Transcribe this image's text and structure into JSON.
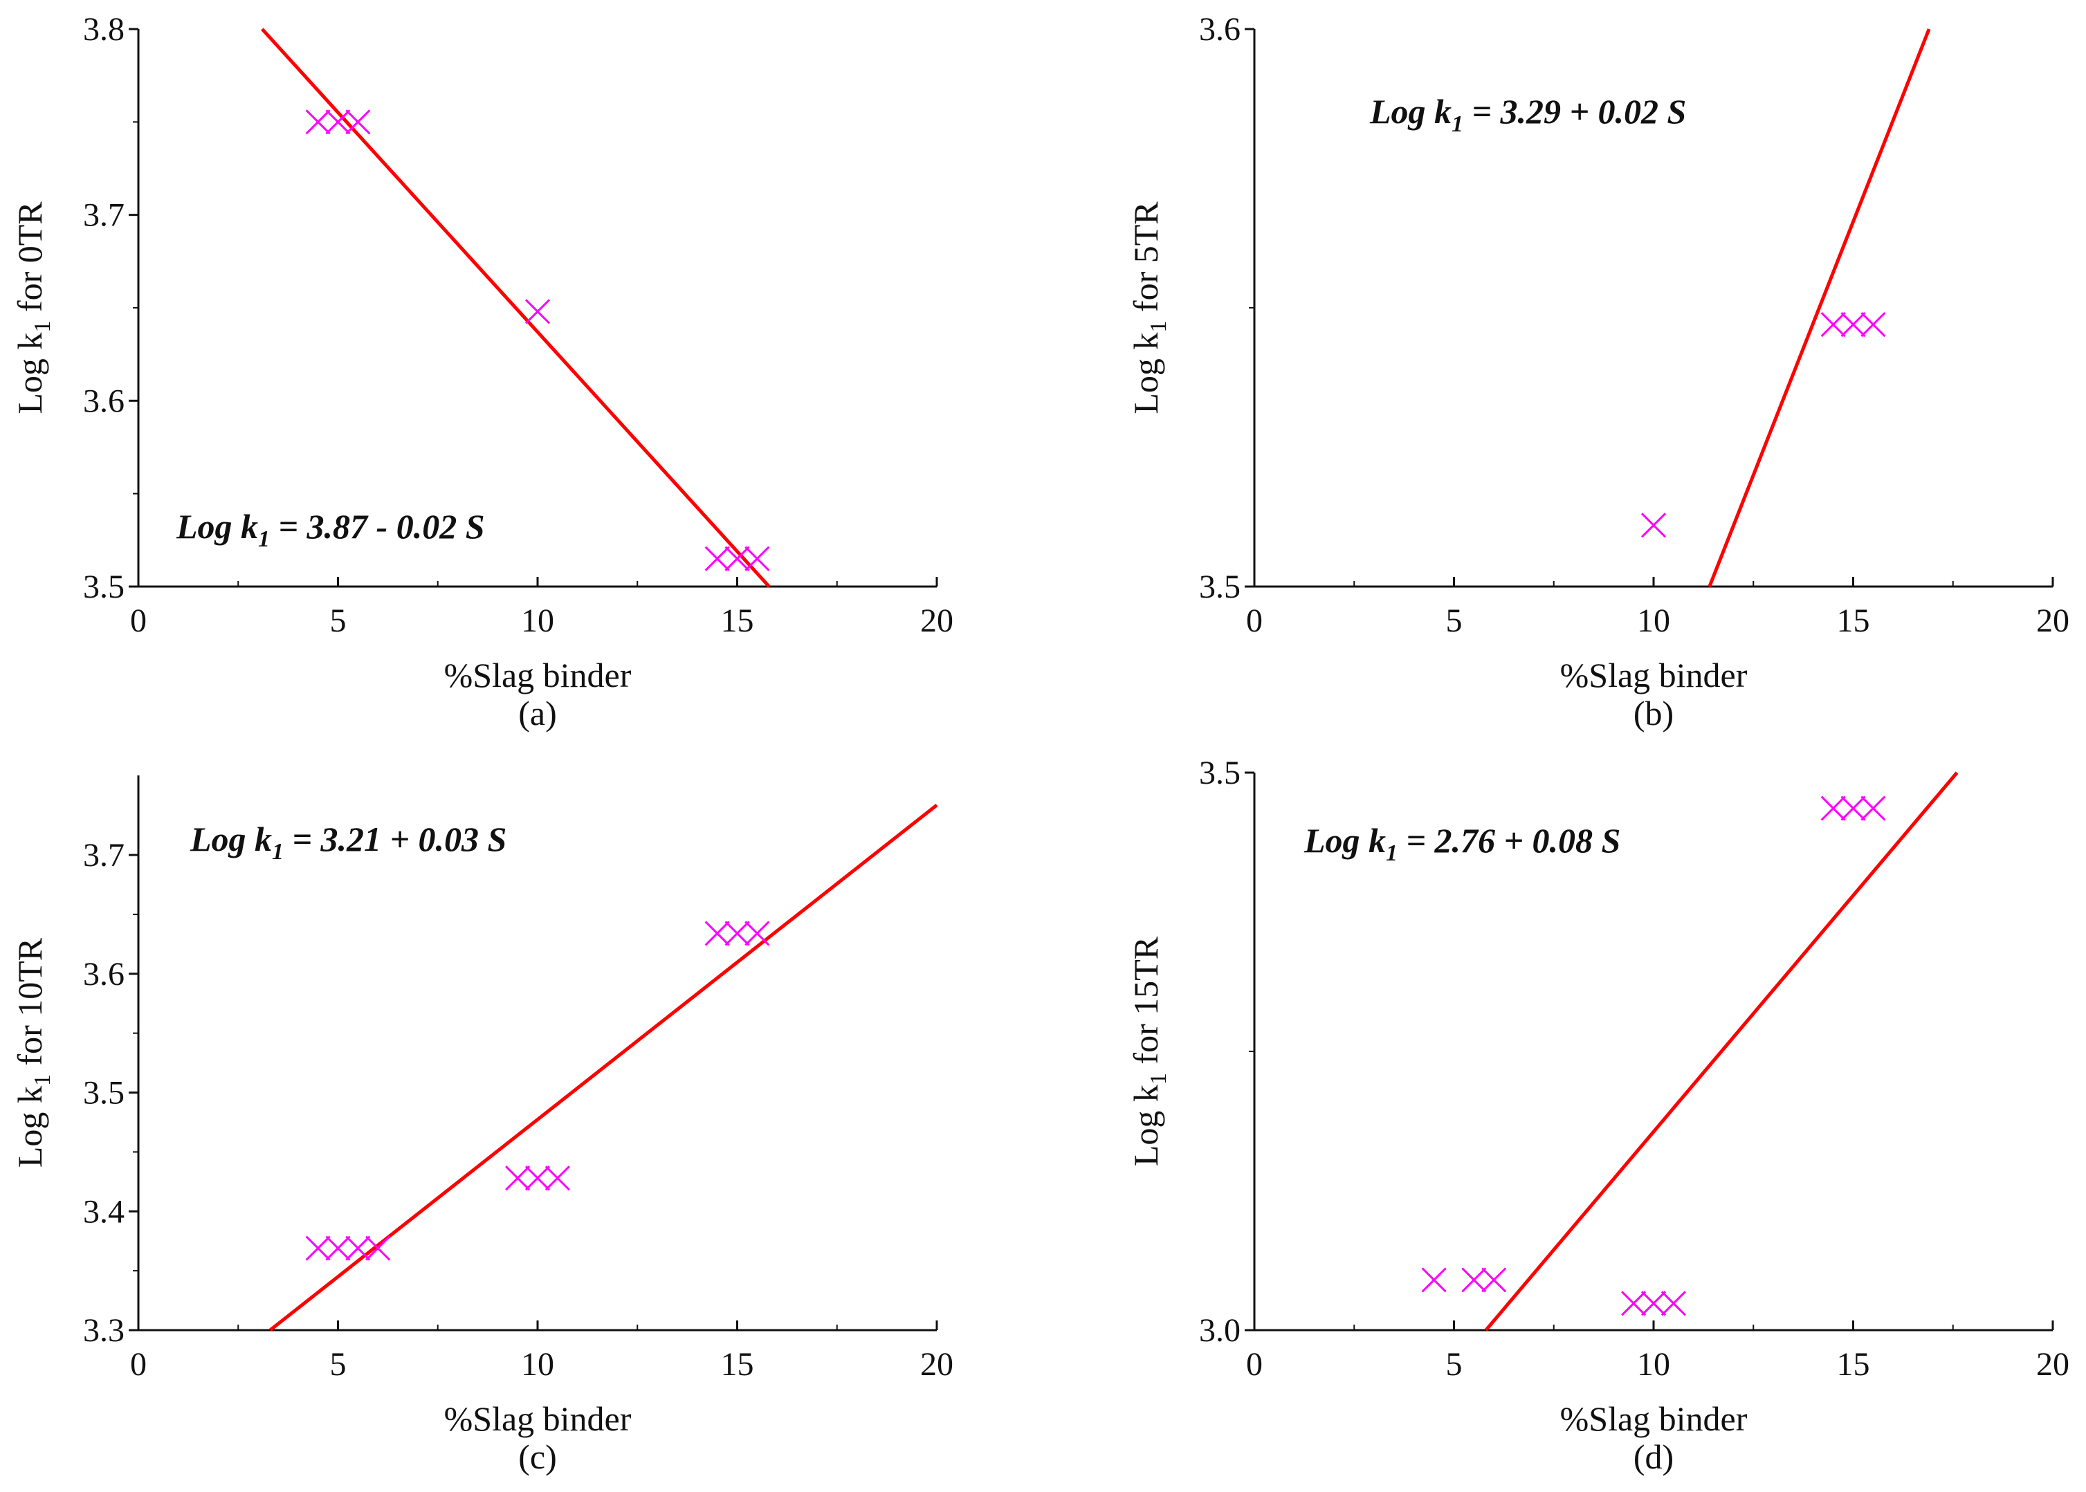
{
  "chart_data": [
    {
      "type": "scatter",
      "panel_label": "(a)",
      "xlabel": "%Slag binder",
      "ylabel": "Log k1 for 0TR",
      "ylabel_parts": [
        "Log k",
        "1",
        " for 0TR"
      ],
      "equation_parts": [
        "Log k",
        "1",
        " = 3.87 - 0.02 S"
      ],
      "xlim": [
        0,
        20
      ],
      "ylim": [
        3.5,
        3.8
      ],
      "xticks": [
        0,
        5,
        10,
        15,
        20
      ],
      "yticks": [
        "3.5",
        "3.6",
        "3.7",
        "3.8"
      ],
      "points": [
        [
          4.5,
          3.75
        ],
        [
          5,
          3.75
        ],
        [
          5.5,
          3.75
        ],
        [
          10,
          3.648
        ],
        [
          14.5,
          3.515
        ],
        [
          15,
          3.515
        ],
        [
          15.5,
          3.515
        ]
      ],
      "fit_line": [
        [
          3.1,
          3.8
        ],
        [
          15.8,
          3.5
        ]
      ],
      "grid": false
    },
    {
      "type": "scatter",
      "panel_label": "(b)",
      "xlabel": "%Slag binder",
      "ylabel": "Log k1 for 5TR",
      "ylabel_parts": [
        "Log k",
        "1",
        " for 5TR"
      ],
      "equation_parts": [
        "Log k",
        "1",
        " = 3.29 + 0.02 S"
      ],
      "xlim": [
        0,
        20
      ],
      "ylim": [
        3.5,
        3.6
      ],
      "xticks": [
        0,
        5,
        10,
        15,
        20
      ],
      "yticks": [
        "3.5",
        "3.6"
      ],
      "points": [
        [
          10,
          3.511
        ],
        [
          14.5,
          3.547
        ],
        [
          15,
          3.547
        ],
        [
          15.5,
          3.547
        ]
      ],
      "fit_line": [
        [
          11.4,
          3.5
        ],
        [
          16.9,
          3.6
        ]
      ],
      "grid": false
    },
    {
      "type": "scatter",
      "panel_label": "(c)",
      "xlabel": "%Slag binder",
      "ylabel": "Log k1 for 10TR",
      "ylabel_parts": [
        "Log k",
        "1",
        " for 10TR"
      ],
      "equation_parts": [
        "Log k",
        "1",
        " = 3.21 + 0.03 S"
      ],
      "xlim": [
        0,
        20
      ],
      "ylim": [
        3.3,
        3.767
      ],
      "xticks": [
        0,
        5,
        10,
        15,
        20
      ],
      "yticks": [
        "3.3",
        "3.4",
        "3.5",
        "3.6",
        "3.7"
      ],
      "points": [
        [
          4.5,
          3.369
        ],
        [
          5,
          3.369
        ],
        [
          5.5,
          3.369
        ],
        [
          6,
          3.369
        ],
        [
          9.5,
          3.428
        ],
        [
          10,
          3.428
        ],
        [
          10.5,
          3.428
        ],
        [
          14.5,
          3.634
        ],
        [
          15,
          3.634
        ],
        [
          15.5,
          3.634
        ]
      ],
      "fit_line": [
        [
          3.3,
          3.3
        ],
        [
          20,
          3.742
        ]
      ],
      "grid": false
    },
    {
      "type": "scatter",
      "panel_label": "(d)",
      "xlabel": "%Slag binder",
      "ylabel": "Log k1 for 15TR",
      "ylabel_parts": [
        "Log k",
        "1",
        " for 15TR"
      ],
      "equation_parts": [
        "Log k",
        "1",
        " = 2.76 + 0.08 S"
      ],
      "xlim": [
        0,
        20
      ],
      "ylim": [
        3.0,
        3.5
      ],
      "xticks": [
        0,
        5,
        10,
        15,
        20
      ],
      "yticks": [
        "3.0",
        "3.5"
      ],
      "points": [
        [
          4.5,
          3.045
        ],
        [
          5.5,
          3.045
        ],
        [
          6,
          3.045
        ],
        [
          9.5,
          3.024
        ],
        [
          10,
          3.024
        ],
        [
          10.5,
          3.024
        ],
        [
          14.5,
          3.468
        ],
        [
          15,
          3.468
        ],
        [
          15.5,
          3.468
        ]
      ],
      "fit_line": [
        [
          5.8,
          3.0
        ],
        [
          17.6,
          3.5
        ]
      ],
      "grid": false
    }
  ],
  "colors": {
    "points": "#ff00ff",
    "fit_line": "#ff0000",
    "axes": "#111111"
  }
}
